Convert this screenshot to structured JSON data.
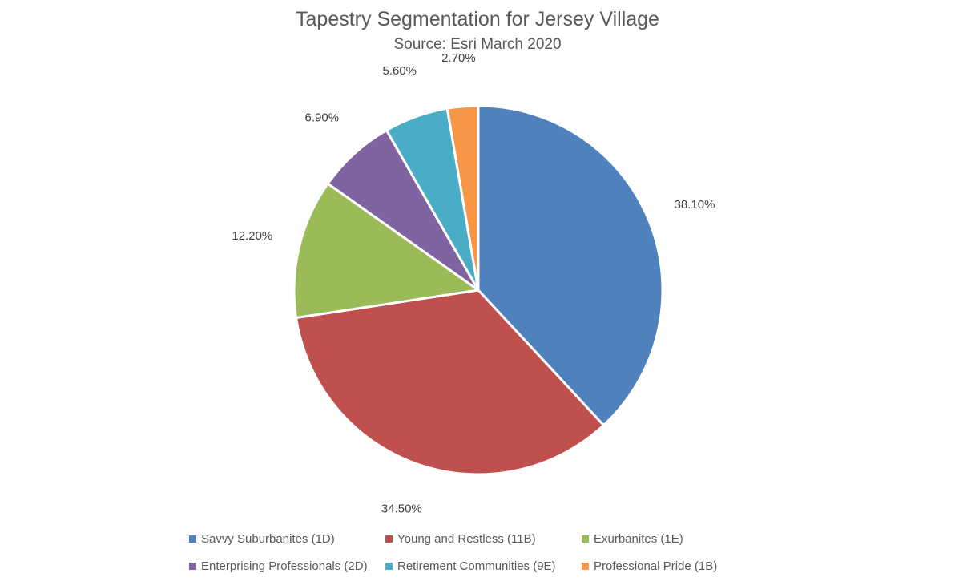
{
  "title": "Tapestry Segmentation for Jersey Village",
  "subtitle": "Source: Esri March 2020",
  "chart_data": {
    "type": "pie",
    "title": "Tapestry Segmentation for Jersey Village",
    "subtitle": "Source: Esri March 2020",
    "legend_position": "bottom",
    "slices": [
      {
        "name": "Savvy Suburbanites (1D)",
        "value": 38.1,
        "label": "38.10%",
        "color": "#4F81BD"
      },
      {
        "name": "Young and Restless (11B)",
        "value": 34.5,
        "label": "34.50%",
        "color": "#C0504D"
      },
      {
        "name": "Exurbanites (1E)",
        "value": 12.2,
        "label": "12.20%",
        "color": "#9BBB59"
      },
      {
        "name": "Enterprising Professionals (2D)",
        "value": 6.9,
        "label": "6.90%",
        "color": "#8064A2"
      },
      {
        "name": "Retirement Communities (9E)",
        "value": 5.6,
        "label": "5.60%",
        "color": "#4BACC6"
      },
      {
        "name": "Professional Pride (1B)",
        "value": 2.7,
        "label": "2.70%",
        "color": "#F79646"
      }
    ]
  }
}
